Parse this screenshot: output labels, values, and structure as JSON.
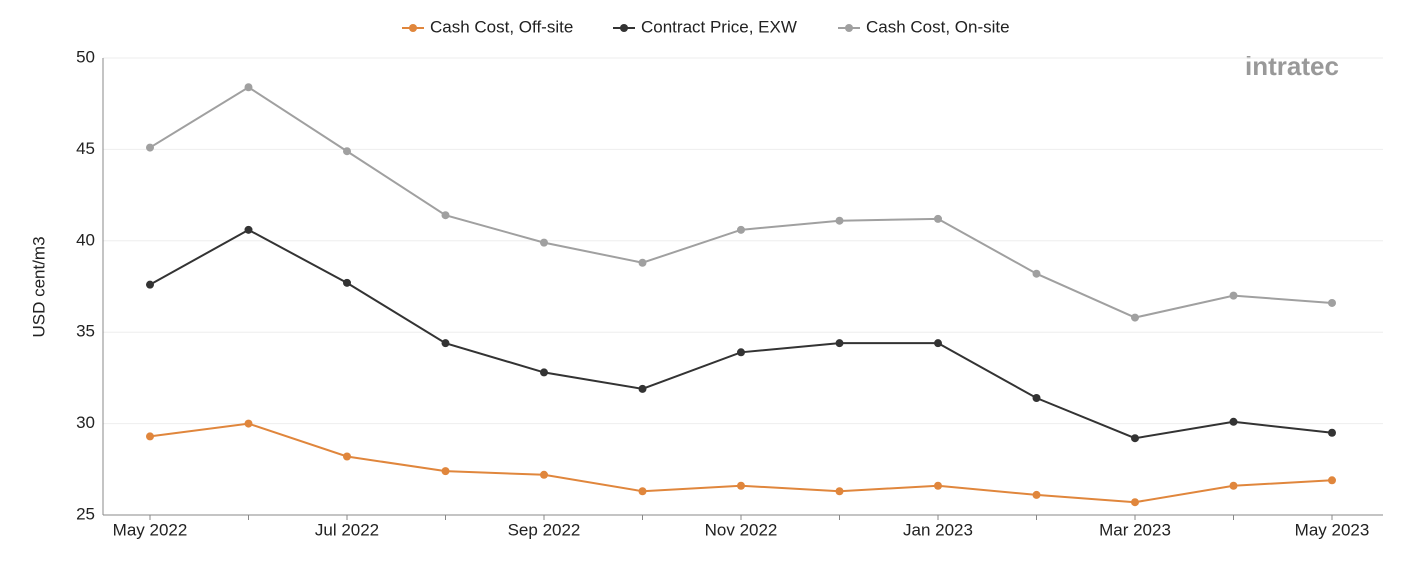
{
  "brand": "intratec",
  "chart_data": {
    "type": "line",
    "y_label": "USD cent/m3",
    "categories": [
      "May 2022",
      null,
      "Jul 2022",
      null,
      "Sep 2022",
      null,
      "Nov 2022",
      null,
      "Jan 2023",
      null,
      "Mar 2023",
      null,
      "May 2023"
    ],
    "series": [
      {
        "name": "Cash Cost, Off-site",
        "color": "#e0863c",
        "values": [
          29.3,
          30.0,
          28.2,
          27.4,
          27.2,
          26.3,
          26.6,
          26.3,
          26.6,
          26.1,
          25.7,
          26.6,
          26.9
        ]
      },
      {
        "name": "Contract Price, EXW",
        "color": "#333333",
        "values": [
          37.6,
          40.6,
          37.7,
          34.4,
          32.8,
          31.9,
          33.9,
          34.4,
          34.4,
          31.4,
          29.2,
          30.1,
          29.5
        ]
      },
      {
        "name": "Cash Cost, On-site",
        "color": "#a0a0a0",
        "values": [
          45.1,
          48.4,
          44.9,
          41.4,
          39.9,
          38.8,
          40.6,
          41.1,
          41.2,
          38.2,
          35.8,
          37.0,
          36.6
        ]
      }
    ],
    "ylim": [
      25,
      50
    ],
    "yticks": [
      25,
      30,
      35,
      40,
      45,
      50
    ],
    "grid": true
  }
}
